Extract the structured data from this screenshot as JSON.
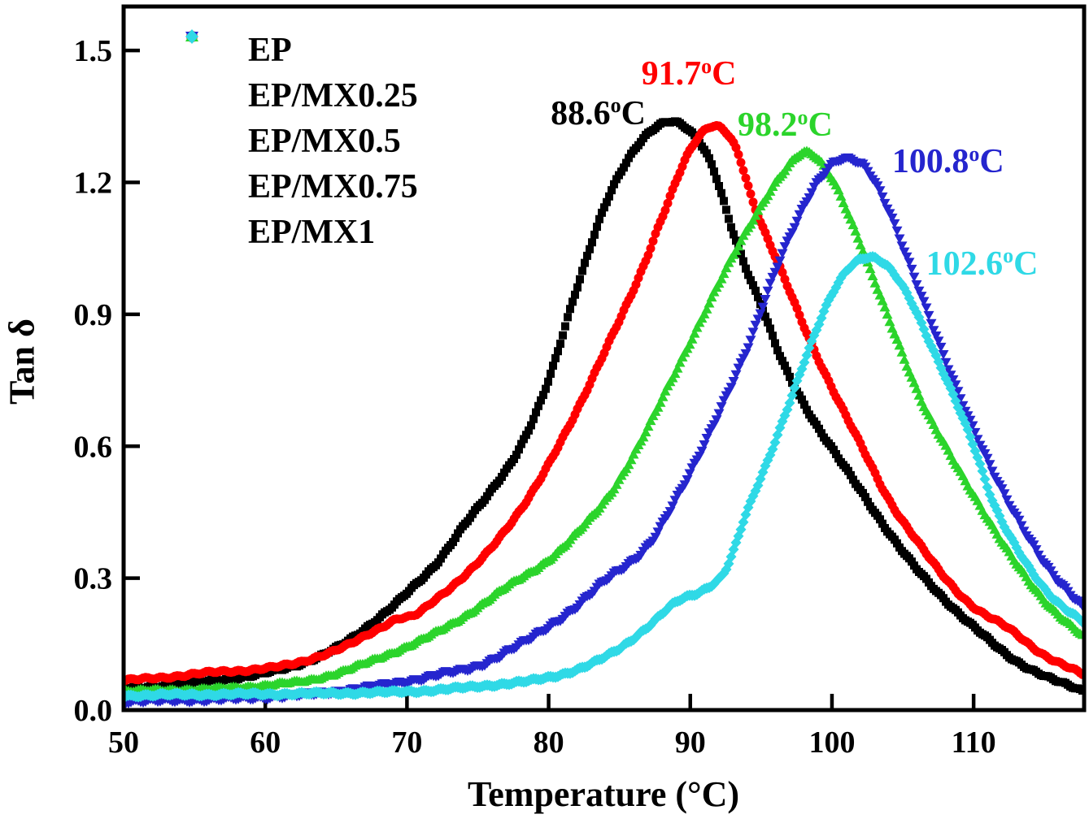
{
  "figure": {
    "background": "#ffffff"
  },
  "chart_data": {
    "type": "line",
    "title": "",
    "xlabel": "Temperature (°C)",
    "ylabel": "Tan δ",
    "xlim": [
      50,
      117.8
    ],
    "ylim": [
      0,
      1.6
    ],
    "x_ticks": [
      50,
      60,
      70,
      80,
      90,
      100,
      110
    ],
    "x_tick_labels": [
      "50",
      "60",
      "70",
      "80",
      "90",
      "100",
      "110"
    ],
    "y_ticks": [
      0.0,
      0.3,
      0.6,
      0.9,
      1.2,
      1.5
    ],
    "y_tick_labels": [
      "0.0",
      "0.3",
      "0.6",
      "0.9",
      "1.2",
      "1.5"
    ],
    "grid": false,
    "legend_position": "upper-left-inside",
    "series": [
      {
        "name": "EP",
        "color": "#000000",
        "marker": "square",
        "peak_temp_c": 88.6,
        "peak_tan_delta": 1.34,
        "points": [
          [
            50,
            0.048
          ],
          [
            53,
            0.056
          ],
          [
            56,
            0.066
          ],
          [
            59,
            0.078
          ],
          [
            62,
            0.1
          ],
          [
            64,
            0.125
          ],
          [
            66,
            0.16
          ],
          [
            68,
            0.21
          ],
          [
            70,
            0.266
          ],
          [
            72,
            0.33
          ],
          [
            74,
            0.42
          ],
          [
            76,
            0.5
          ],
          [
            78,
            0.6
          ],
          [
            80,
            0.75
          ],
          [
            82,
            0.96
          ],
          [
            84,
            1.15
          ],
          [
            86,
            1.27
          ],
          [
            87.5,
            1.325
          ],
          [
            88.6,
            1.34
          ],
          [
            90,
            1.315
          ],
          [
            91.5,
            1.24
          ],
          [
            93,
            1.09
          ],
          [
            94,
            1.0
          ],
          [
            95,
            0.92
          ],
          [
            96.4,
            0.8
          ],
          [
            98.5,
            0.67
          ],
          [
            100,
            0.595
          ],
          [
            102,
            0.5
          ],
          [
            104,
            0.405
          ],
          [
            106,
            0.32
          ],
          [
            108,
            0.25
          ],
          [
            110,
            0.19
          ],
          [
            112.5,
            0.122
          ],
          [
            115,
            0.078
          ],
          [
            117.8,
            0.042
          ]
        ]
      },
      {
        "name": "EP/MX0.25",
        "color": "#FF0000",
        "marker": "circle",
        "peak_temp_c": 91.7,
        "peak_tan_delta": 1.33,
        "points": [
          [
            50,
            0.067
          ],
          [
            53,
            0.075
          ],
          [
            56,
            0.085
          ],
          [
            59,
            0.092
          ],
          [
            62,
            0.105
          ],
          [
            64,
            0.125
          ],
          [
            66,
            0.15
          ],
          [
            68,
            0.185
          ],
          [
            69.3,
            0.208
          ],
          [
            70.5,
            0.215
          ],
          [
            72,
            0.25
          ],
          [
            74,
            0.305
          ],
          [
            76,
            0.37
          ],
          [
            78,
            0.455
          ],
          [
            80,
            0.56
          ],
          [
            82,
            0.68
          ],
          [
            84,
            0.82
          ],
          [
            86.6,
            1.0
          ],
          [
            88,
            1.12
          ],
          [
            90,
            1.275
          ],
          [
            91.7,
            1.327
          ],
          [
            93.2,
            1.28
          ],
          [
            94.5,
            1.15
          ],
          [
            96.4,
            1.0
          ],
          [
            98.6,
            0.83
          ],
          [
            100.2,
            0.72
          ],
          [
            102,
            0.605
          ],
          [
            104,
            0.48
          ],
          [
            106,
            0.385
          ],
          [
            108,
            0.3
          ],
          [
            110,
            0.235
          ],
          [
            112.5,
            0.185
          ],
          [
            115,
            0.125
          ],
          [
            117.8,
            0.08
          ]
        ]
      },
      {
        "name": "EP/MX0.5",
        "color": "#2BD42B",
        "marker": "triangle-up",
        "peak_temp_c": 98.2,
        "peak_tan_delta": 1.27,
        "points": [
          [
            50,
            0.043
          ],
          [
            54,
            0.046
          ],
          [
            58,
            0.051
          ],
          [
            61,
            0.06
          ],
          [
            63,
            0.067
          ],
          [
            66.5,
            0.1
          ],
          [
            70,
            0.145
          ],
          [
            73.4,
            0.2
          ],
          [
            76.8,
            0.275
          ],
          [
            80.3,
            0.35
          ],
          [
            82.5,
            0.42
          ],
          [
            84.5,
            0.5
          ],
          [
            86.5,
            0.61
          ],
          [
            88.5,
            0.74
          ],
          [
            90.5,
            0.87
          ],
          [
            92.5,
            1.0
          ],
          [
            94.5,
            1.12
          ],
          [
            96.5,
            1.22
          ],
          [
            98.2,
            1.268
          ],
          [
            100,
            1.21
          ],
          [
            101.5,
            1.1
          ],
          [
            102.7,
            1.0
          ],
          [
            104.5,
            0.85
          ],
          [
            106.5,
            0.69
          ],
          [
            108,
            0.6
          ],
          [
            110,
            0.49
          ],
          [
            112.5,
            0.357
          ],
          [
            115,
            0.25
          ],
          [
            117.8,
            0.165
          ]
        ]
      },
      {
        "name": "EP/MX0.75",
        "color": "#2525CE",
        "marker": "triangle-down",
        "peak_temp_c": 100.8,
        "peak_tan_delta": 1.26,
        "points": [
          [
            50,
            0.02
          ],
          [
            54,
            0.022
          ],
          [
            58,
            0.026
          ],
          [
            62,
            0.033
          ],
          [
            65,
            0.042
          ],
          [
            68,
            0.055
          ],
          [
            70,
            0.065
          ],
          [
            72.5,
            0.082
          ],
          [
            75,
            0.1
          ],
          [
            77.5,
            0.14
          ],
          [
            80,
            0.19
          ],
          [
            82,
            0.235
          ],
          [
            84,
            0.295
          ],
          [
            87.2,
            0.38
          ],
          [
            89,
            0.48
          ],
          [
            90.6,
            0.58
          ],
          [
            92.5,
            0.71
          ],
          [
            94,
            0.82
          ],
          [
            96,
            1.0
          ],
          [
            97.5,
            1.11
          ],
          [
            99,
            1.2
          ],
          [
            100.8,
            1.255
          ],
          [
            102.3,
            1.235
          ],
          [
            103.8,
            1.15
          ],
          [
            105.3,
            1.03
          ],
          [
            106.7,
            0.91
          ],
          [
            108.3,
            0.77
          ],
          [
            110,
            0.64
          ],
          [
            112.5,
            0.47
          ],
          [
            115,
            0.335
          ],
          [
            117.8,
            0.23
          ]
        ]
      },
      {
        "name": "EP/MX1",
        "color": "#2FD9E6",
        "marker": "diamond",
        "peak_temp_c": 102.6,
        "peak_tan_delta": 1.03,
        "points": [
          [
            50,
            0.033
          ],
          [
            54,
            0.035
          ],
          [
            58,
            0.036
          ],
          [
            62,
            0.037
          ],
          [
            66,
            0.039
          ],
          [
            70,
            0.042
          ],
          [
            73,
            0.048
          ],
          [
            76,
            0.057
          ],
          [
            79,
            0.068
          ],
          [
            81,
            0.082
          ],
          [
            83,
            0.105
          ],
          [
            85,
            0.14
          ],
          [
            87,
            0.19
          ],
          [
            89,
            0.245
          ],
          [
            91,
            0.275
          ],
          [
            92.5,
            0.32
          ],
          [
            94,
            0.45
          ],
          [
            95.5,
            0.57
          ],
          [
            97,
            0.7
          ],
          [
            98.5,
            0.83
          ],
          [
            100,
            0.945
          ],
          [
            101.3,
            1.01
          ],
          [
            102.6,
            1.03
          ],
          [
            104,
            1.005
          ],
          [
            105.5,
            0.935
          ],
          [
            107,
            0.83
          ],
          [
            108.5,
            0.72
          ],
          [
            110,
            0.6
          ],
          [
            111.3,
            0.48
          ],
          [
            112.5,
            0.4
          ],
          [
            115,
            0.275
          ],
          [
            117.8,
            0.2
          ]
        ]
      }
    ],
    "annotations": [
      {
        "value": "88.6",
        "sup": "o",
        "unit": "C",
        "color": "#000000",
        "t": 83.5,
        "v": 1.357
      },
      {
        "value": "91.7",
        "sup": "o",
        "unit": "C",
        "color": "#FF0000",
        "t": 89.9,
        "v": 1.447
      },
      {
        "value": "98.2",
        "sup": "o",
        "unit": "C",
        "color": "#2BD42B",
        "t": 96.7,
        "v": 1.33
      },
      {
        "value": "100.8",
        "sup": "o",
        "unit": "C",
        "color": "#2525CE",
        "t": 108.2,
        "v": 1.247
      },
      {
        "value": "102.6",
        "sup": "o",
        "unit": "C",
        "color": "#2FD9E6",
        "t": 110.6,
        "v": 1.015
      }
    ]
  }
}
